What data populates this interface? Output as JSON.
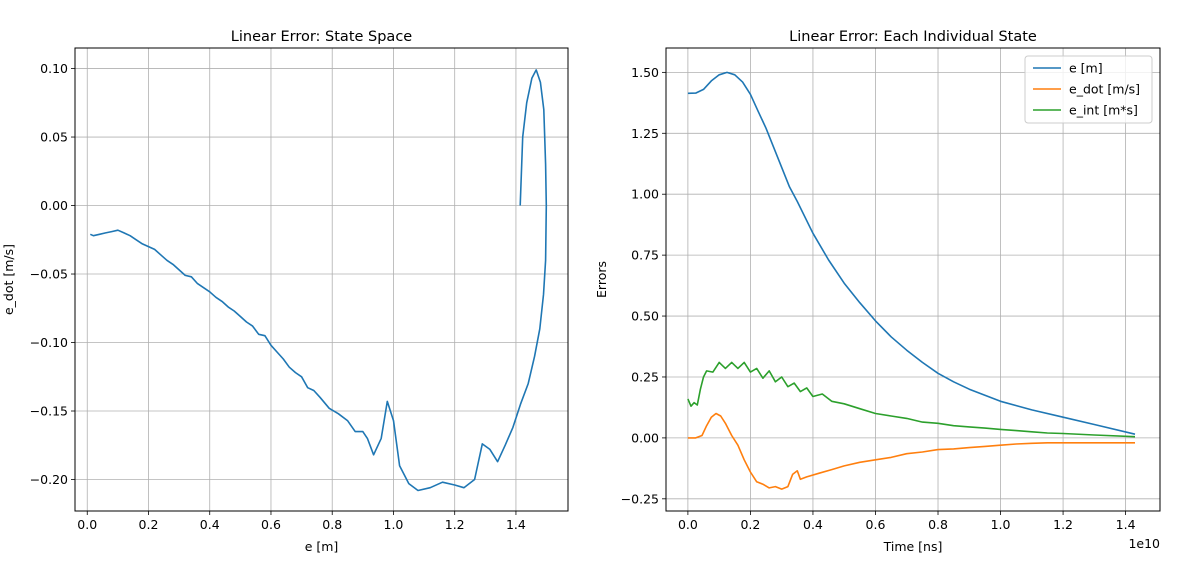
{
  "chart_data": [
    {
      "type": "line",
      "title": "Linear Error: State Space",
      "xlabel": "e [m]",
      "ylabel": "e_dot [m/s]",
      "xlim": [
        -0.04,
        1.57
      ],
      "ylim": [
        -0.223,
        0.115
      ],
      "grid": true,
      "xticks": [
        0.0,
        0.2,
        0.4,
        0.6,
        0.8,
        1.0,
        1.2,
        1.4
      ],
      "xtick_labels": [
        "0.0",
        "0.2",
        "0.4",
        "0.6",
        "0.8",
        "1.0",
        "1.2",
        "1.4"
      ],
      "yticks": [
        0.1,
        0.05,
        0.0,
        -0.05,
        -0.1,
        -0.15,
        -0.2
      ],
      "ytick_labels": [
        "0.10",
        "0.05",
        "0.00",
        "−0.05",
        "−0.10",
        "−0.15",
        "−0.20"
      ],
      "series": [
        {
          "color": "#1f77b4",
          "x": [
            1.414,
            1.422,
            1.435,
            1.452,
            1.466,
            1.48,
            1.491,
            1.497,
            1.499,
            1.497,
            1.49,
            1.478,
            1.461,
            1.44,
            1.415,
            1.39,
            1.365,
            1.34,
            1.315,
            1.29,
            1.265,
            1.23,
            1.2,
            1.16,
            1.12,
            1.08,
            1.05,
            1.02,
            1.0,
            0.98,
            0.96,
            0.935,
            0.915,
            0.9,
            0.875,
            0.85,
            0.82,
            0.79,
            0.76,
            0.74,
            0.72,
            0.7,
            0.68,
            0.66,
            0.64,
            0.62,
            0.6,
            0.58,
            0.56,
            0.54,
            0.52,
            0.5,
            0.48,
            0.46,
            0.44,
            0.42,
            0.4,
            0.38,
            0.36,
            0.34,
            0.32,
            0.3,
            0.28,
            0.26,
            0.24,
            0.22,
            0.2,
            0.18,
            0.16,
            0.14,
            0.12,
            0.1,
            0.08,
            0.06,
            0.04,
            0.02,
            0.01
          ],
          "y": [
            0.0,
            0.05,
            0.075,
            0.093,
            0.099,
            0.09,
            0.07,
            0.03,
            0.0,
            -0.04,
            -0.065,
            -0.09,
            -0.11,
            -0.13,
            -0.145,
            -0.162,
            -0.175,
            -0.187,
            -0.178,
            -0.174,
            -0.2,
            -0.206,
            -0.204,
            -0.202,
            -0.206,
            -0.208,
            -0.203,
            -0.19,
            -0.157,
            -0.143,
            -0.17,
            -0.182,
            -0.17,
            -0.165,
            -0.165,
            -0.157,
            -0.152,
            -0.148,
            -0.14,
            -0.135,
            -0.133,
            -0.125,
            -0.122,
            -0.118,
            -0.112,
            -0.107,
            -0.102,
            -0.095,
            -0.094,
            -0.088,
            -0.085,
            -0.081,
            -0.077,
            -0.074,
            -0.07,
            -0.067,
            -0.063,
            -0.06,
            -0.057,
            -0.052,
            -0.051,
            -0.047,
            -0.043,
            -0.04,
            -0.036,
            -0.032,
            -0.03,
            -0.028,
            -0.025,
            -0.022,
            -0.02,
            -0.018,
            -0.019,
            -0.02,
            -0.021,
            -0.022,
            -0.021
          ]
        }
      ]
    },
    {
      "type": "line",
      "title": "Linear Error: Each Individual State",
      "xlabel": "Time [ns]",
      "ylabel": "Errors",
      "x_offset_text": "1e10",
      "xlim": [
        -0.7,
        15.1
      ],
      "ylim": [
        -0.3,
        1.6
      ],
      "grid": true,
      "xticks": [
        0,
        2,
        4,
        6,
        8,
        10,
        12,
        14
      ],
      "xtick_labels": [
        "0.0",
        "0.2",
        "0.4",
        "0.6",
        "0.8",
        "1.0",
        "1.2",
        "1.4"
      ],
      "yticks": [
        1.5,
        1.25,
        1.0,
        0.75,
        0.5,
        0.25,
        0.0,
        -0.25
      ],
      "ytick_labels": [
        "1.50",
        "1.25",
        "1.00",
        "0.75",
        "0.50",
        "0.25",
        "0.00",
        "−0.25"
      ],
      "legend_position": "top-right",
      "series": [
        {
          "name": "e [m]",
          "color": "#1f77b4",
          "x": [
            0,
            0.25,
            0.5,
            0.75,
            1.0,
            1.25,
            1.5,
            1.75,
            2.0,
            2.25,
            2.5,
            2.75,
            3.0,
            3.25,
            3.5,
            4.0,
            4.5,
            5.0,
            5.5,
            6.0,
            6.5,
            7.0,
            7.5,
            8.0,
            8.5,
            9.0,
            9.5,
            10.0,
            11.0,
            12.0,
            13.0,
            14.3
          ],
          "y": [
            1.414,
            1.415,
            1.43,
            1.465,
            1.49,
            1.5,
            1.49,
            1.46,
            1.41,
            1.34,
            1.27,
            1.19,
            1.11,
            1.03,
            0.97,
            0.84,
            0.73,
            0.635,
            0.555,
            0.48,
            0.415,
            0.36,
            0.31,
            0.265,
            0.23,
            0.2,
            0.175,
            0.15,
            0.115,
            0.085,
            0.055,
            0.015
          ]
        },
        {
          "name": "e_dot [m/s]",
          "color": "#ff7f0e",
          "x": [
            0,
            0.25,
            0.45,
            0.6,
            0.75,
            0.9,
            1.05,
            1.2,
            1.4,
            1.6,
            1.8,
            2.0,
            2.2,
            2.4,
            2.6,
            2.8,
            3.0,
            3.2,
            3.35,
            3.5,
            3.6,
            3.8,
            4.2,
            4.6,
            5.0,
            5.5,
            6.0,
            6.5,
            7.0,
            7.5,
            8.0,
            8.5,
            9.0,
            9.5,
            10.0,
            10.5,
            11.0,
            11.5,
            12.0,
            13.0,
            14.3
          ],
          "y": [
            0.0,
            0.0,
            0.01,
            0.05,
            0.085,
            0.1,
            0.09,
            0.06,
            0.01,
            -0.03,
            -0.09,
            -0.14,
            -0.18,
            -0.19,
            -0.205,
            -0.2,
            -0.21,
            -0.2,
            -0.15,
            -0.135,
            -0.17,
            -0.16,
            -0.145,
            -0.13,
            -0.115,
            -0.1,
            -0.09,
            -0.08,
            -0.065,
            -0.058,
            -0.048,
            -0.045,
            -0.04,
            -0.035,
            -0.03,
            -0.025,
            -0.022,
            -0.02,
            -0.02,
            -0.02,
            -0.02
          ]
        },
        {
          "name": "e_int [m*s]",
          "color": "#2ca02c",
          "x": [
            0,
            0.1,
            0.2,
            0.3,
            0.4,
            0.5,
            0.6,
            0.8,
            1.0,
            1.2,
            1.4,
            1.6,
            1.8,
            2.0,
            2.2,
            2.4,
            2.6,
            2.8,
            3.0,
            3.2,
            3.4,
            3.6,
            3.8,
            4.0,
            4.3,
            4.6,
            5.0,
            5.5,
            6.0,
            6.5,
            7.0,
            7.5,
            8.0,
            8.5,
            9.0,
            9.5,
            10.0,
            10.5,
            11.0,
            11.5,
            12.0,
            13.0,
            14.3
          ],
          "y": [
            0.16,
            0.13,
            0.145,
            0.135,
            0.2,
            0.25,
            0.275,
            0.27,
            0.31,
            0.285,
            0.31,
            0.285,
            0.31,
            0.27,
            0.285,
            0.245,
            0.275,
            0.23,
            0.25,
            0.21,
            0.225,
            0.19,
            0.205,
            0.17,
            0.18,
            0.15,
            0.14,
            0.12,
            0.1,
            0.09,
            0.08,
            0.065,
            0.06,
            0.05,
            0.045,
            0.04,
            0.035,
            0.03,
            0.025,
            0.02,
            0.018,
            0.012,
            0.005
          ]
        }
      ]
    }
  ]
}
